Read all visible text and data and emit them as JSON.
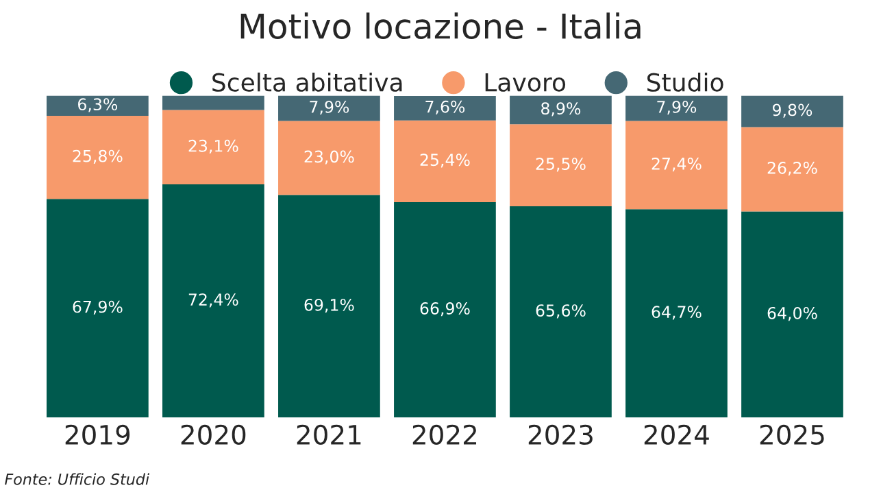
{
  "chart_data": {
    "type": "bar",
    "stacked": true,
    "title": "Motivo locazione - Italia",
    "legend": "top",
    "categories": [
      "2019",
      "2020",
      "2021",
      "2022",
      "2023",
      "2024",
      "2025"
    ],
    "series": [
      {
        "name": "Scelta abitativa",
        "color": "#005a4e",
        "values": [
          67.9,
          72.4,
          69.1,
          66.9,
          65.6,
          64.7,
          64.0
        ],
        "value_labels": [
          "67,9%",
          "72,4%",
          "69,1%",
          "66,9%",
          "65,6%",
          "64,7%",
          "64,0%"
        ]
      },
      {
        "name": "Lavoro",
        "color": "#f79a6b",
        "values": [
          25.8,
          23.1,
          23.0,
          25.4,
          25.5,
          27.4,
          26.2
        ],
        "value_labels": [
          "25,8%",
          "23,1%",
          "23,0%",
          "25,4%",
          "25,5%",
          "27,4%",
          "26,2%"
        ]
      },
      {
        "name": "Studio",
        "color": "#456874",
        "values": [
          6.3,
          4.5,
          7.9,
          7.6,
          8.9,
          7.9,
          9.8
        ],
        "value_labels": [
          "6,3%",
          null,
          "7,9%",
          "7,6%",
          "8,9%",
          "7,9%",
          "9,8%"
        ]
      }
    ],
    "annotations": [
      "Fonte: Ufficio Studi"
    ]
  }
}
